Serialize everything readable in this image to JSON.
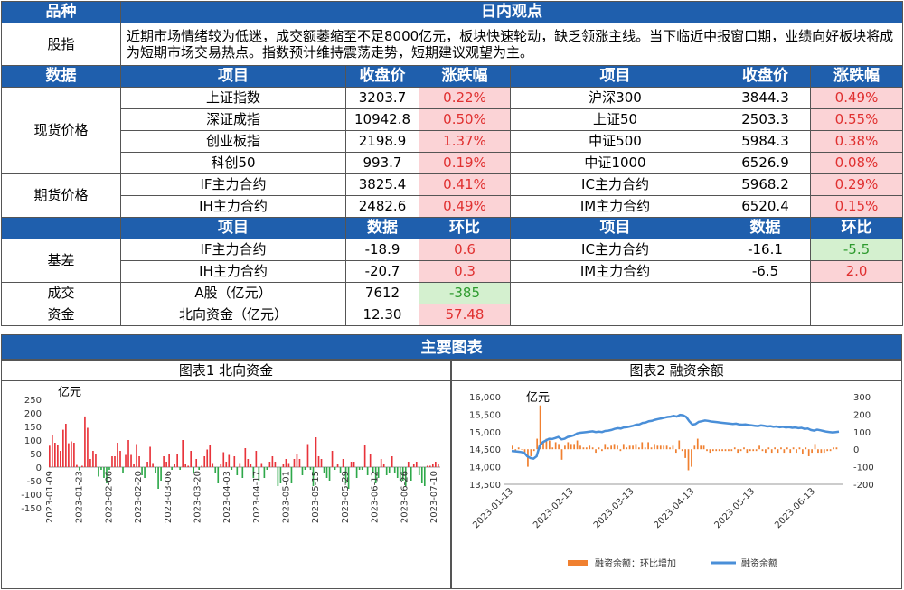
{
  "header": {
    "col1": "品种",
    "col2": "日内观点"
  },
  "view_row": {
    "label": "股指",
    "text": "近期市场情绪较为低迷，成交额萎缩至不足8000亿元，板块快速轮动，缺乏领涨主线。当下临近中报窗口期，业绩向好板块将成为短期市场交易热点。指数预计维持震荡走势，短期建议观望为主。"
  },
  "price_header": {
    "c1": "数据",
    "c2": "项目",
    "c3": "收盘价",
    "c4": "涨跌幅",
    "c5": "项目",
    "c6": "收盘价",
    "c7": "涨跌幅"
  },
  "spot": {
    "label": "现货价格",
    "rows": [
      {
        "a": "上证指数",
        "av": "3203.7",
        "ap": "0.22%",
        "b": "沪深300",
        "bv": "3844.3",
        "bp": "0.49%"
      },
      {
        "a": "深证成指",
        "av": "10942.8",
        "ap": "0.50%",
        "b": "上证50",
        "bv": "2503.3",
        "bp": "0.55%"
      },
      {
        "a": "创业板指",
        "av": "2198.9",
        "ap": "1.37%",
        "b": "中证500",
        "bv": "5984.3",
        "bp": "0.38%"
      },
      {
        "a": "科创50",
        "av": "993.7",
        "ap": "0.19%",
        "b": "中证1000",
        "bv": "6526.9",
        "bp": "0.08%"
      }
    ]
  },
  "futures": {
    "label": "期货价格",
    "rows": [
      {
        "a": "IF主力合约",
        "av": "3825.4",
        "ap": "0.41%",
        "b": "IC主力合约",
        "bv": "5968.2",
        "bp": "0.29%"
      },
      {
        "a": "IH主力合约",
        "av": "2482.6",
        "ap": "0.49%",
        "b": "IM主力合约",
        "bv": "6520.4",
        "bp": "0.15%"
      }
    ]
  },
  "basis_header": {
    "c2": "项目",
    "c3": "数据",
    "c4": "环比",
    "c5": "项目",
    "c6": "数据",
    "c7": "环比"
  },
  "basis": {
    "label": "基差",
    "rows": [
      {
        "a": "IF主力合约",
        "av": "-18.9",
        "ap": "0.6",
        "b": "IC主力合约",
        "bv": "-16.1",
        "bp": "-5.5"
      },
      {
        "a": "IH主力合约",
        "av": "-20.7",
        "ap": "0.3",
        "b": "IM主力合约",
        "bv": "-6.5",
        "bp": "2.0"
      }
    ]
  },
  "volume": {
    "label": "成交",
    "item": "A股（亿元）",
    "value": "7612",
    "change": "-385"
  },
  "capital": {
    "label": "资金",
    "item": "北向资金（亿元）",
    "value": "12.30",
    "change": "57.48"
  },
  "section_title": "主要图表",
  "chart_data": [
    {
      "type": "bar",
      "title": "图表1 北向资金",
      "unit_label": "亿元",
      "ylim": [
        -150,
        250
      ],
      "yticks": [
        250,
        200,
        150,
        100,
        50,
        0,
        -50,
        -100,
        -150
      ],
      "xticks": [
        "2023-01-09",
        "2023-01-23",
        "2023-02-06",
        "2023-02-20",
        "2023-03-06",
        "2023-03-20",
        "2023-04-03",
        "2023-04-17",
        "2023-05-01",
        "2023-05-15",
        "2023-05-29",
        "2023-06-12",
        "2023-06-26",
        "2023-07-10"
      ],
      "values": [
        79,
        120,
        90,
        80,
        60,
        138,
        160,
        88,
        95,
        90,
        8,
        -12,
        5,
        187,
        145,
        30,
        60,
        50,
        -35,
        -10,
        -40,
        -60,
        -10,
        40,
        40,
        90,
        60,
        -20,
        45,
        100,
        45,
        10,
        85,
        40,
        -30,
        -40,
        20,
        75,
        15,
        -20,
        -80,
        -50,
        40,
        20,
        50,
        -10,
        10,
        50,
        -10,
        100,
        10,
        5,
        60,
        -20,
        30,
        -10,
        5,
        40,
        65,
        80,
        15,
        -20,
        -60,
        10,
        55,
        20,
        45,
        -10,
        40,
        -30,
        15,
        -40,
        70,
        30,
        10,
        -40,
        60,
        -50,
        15,
        -40,
        -10,
        20,
        40,
        20,
        -70,
        -60,
        10,
        30,
        15,
        -60,
        30,
        50,
        30,
        -30,
        -10,
        85,
        -10,
        -70,
        110,
        40,
        30,
        -20,
        -40,
        -50,
        60,
        -10,
        10,
        -20,
        30,
        -60,
        -80,
        20,
        20,
        -40,
        -10,
        -10,
        80,
        -30,
        50,
        -20,
        -60,
        -40,
        30,
        10,
        -30,
        -20,
        40,
        -20,
        -40,
        -50,
        -50,
        -70,
        20,
        -50,
        10,
        20,
        -30,
        -60,
        -70,
        5,
        5,
        10,
        20,
        10
      ]
    },
    {
      "type": "bar+line",
      "title": "图表2 融资余额",
      "unit_label": "亿元",
      "ylim_left": [
        13500,
        16000
      ],
      "yticks_left": [
        "16,000",
        "15,500",
        "15,000",
        "14,500",
        "14,000",
        "13,500"
      ],
      "ylim_right": [
        -200,
        300
      ],
      "yticks_right": [
        "300",
        "200",
        "100",
        "0",
        "-100",
        "-200"
      ],
      "xticks": [
        "2023-01-13",
        "2023-02-13",
        "2023-03-13",
        "2023-04-13",
        "2023-05-13",
        "2023-06-13"
      ],
      "legend": [
        "融资余额：环比增加",
        "融资余额"
      ],
      "colors": {
        "bar": "#f08030",
        "line": "#4a8fd8"
      },
      "line": [
        14450,
        14440,
        14430,
        14420,
        14400,
        14300,
        14250,
        14230,
        14300,
        14600,
        14700,
        14750,
        14800,
        14790,
        14820,
        14850,
        14780,
        14800,
        14850,
        14870,
        14900,
        14950,
        14970,
        14980,
        14990,
        15000,
        15010,
        14990,
        15000,
        14990,
        15020,
        15030,
        15050,
        15080,
        15100,
        15090,
        15120,
        15130,
        15150,
        15170,
        15200,
        15210,
        15250,
        15260,
        15300,
        15310,
        15340,
        15360,
        15380,
        15400,
        15420,
        15430,
        15450,
        15430,
        15480,
        15470,
        15420,
        15300,
        15200,
        15220,
        15280,
        15300,
        15320,
        15310,
        15290,
        15280,
        15270,
        15260,
        15250,
        15240,
        15230,
        15220,
        15230,
        15210,
        15200,
        15210,
        15190,
        15180,
        15170,
        15160,
        15180,
        15170,
        15150,
        15160,
        15140,
        15150,
        15130,
        15140,
        15120,
        15130,
        15110,
        15120,
        15100,
        15110,
        15080,
        15090,
        15050,
        15030,
        15060,
        15040,
        15020,
        15000,
        14990,
        14980,
        14990,
        15000
      ],
      "bars": [
        20,
        -10,
        10,
        0,
        -20,
        -100,
        -40,
        -10,
        60,
        250,
        40,
        60,
        50,
        10,
        40,
        30,
        -60,
        20,
        40,
        30,
        30,
        50,
        20,
        10,
        10,
        20,
        10,
        -20,
        10,
        -10,
        30,
        10,
        20,
        30,
        20,
        -10,
        30,
        10,
        20,
        20,
        30,
        10,
        40,
        10,
        40,
        10,
        30,
        20,
        20,
        20,
        20,
        10,
        20,
        -20,
        50,
        -10,
        -50,
        -120,
        -100,
        20,
        60,
        20,
        20,
        -10,
        -20,
        -10,
        -10,
        -10,
        -10,
        -10,
        -10,
        -10,
        10,
        -20,
        -10,
        10,
        -20,
        -10,
        -10,
        -10,
        20,
        -10,
        -20,
        10,
        -20,
        10,
        -20,
        10,
        -20,
        10,
        -20,
        10,
        -20,
        10,
        -30,
        10,
        -40,
        -20,
        30,
        -20,
        -20,
        -20,
        -10,
        -10,
        10,
        10
      ]
    }
  ]
}
